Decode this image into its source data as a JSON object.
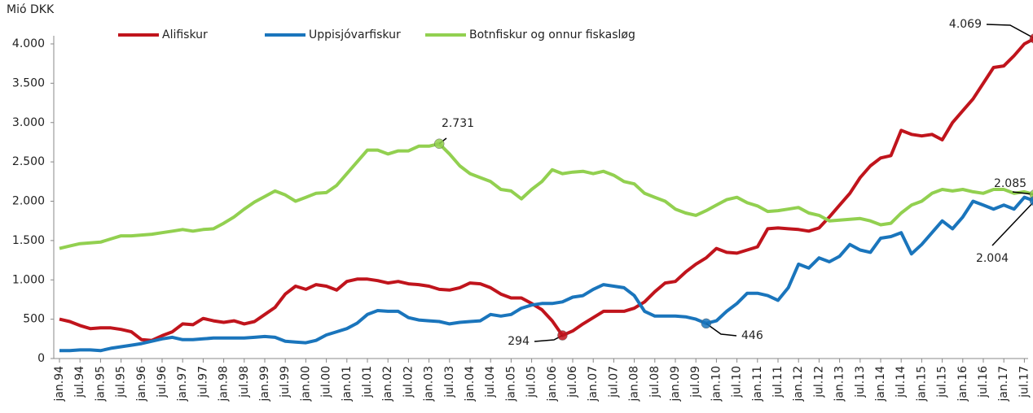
{
  "chart_data": {
    "type": "line",
    "y_label": "Mió DKK",
    "categories": [
      "jan.94",
      null,
      "jul.94",
      null,
      "jan.95",
      null,
      "jul.95",
      null,
      "jan.96",
      null,
      "jul.96",
      null,
      "jan.97",
      null,
      "jul.97",
      null,
      "jan.98",
      null,
      "jul.98",
      null,
      "jan.99",
      null,
      "jul.99",
      null,
      "jan.00",
      null,
      "jul.00",
      null,
      "jan.01",
      null,
      "jul.01",
      null,
      "jan.02",
      null,
      "jul.02",
      null,
      "jan.03",
      null,
      "jul.03",
      null,
      "jan.04",
      null,
      "jul.04",
      null,
      "jan.05",
      null,
      "jul.05",
      null,
      "jan.06",
      null,
      "jul.06",
      null,
      "jan.07",
      null,
      "jul.07",
      null,
      "jan.08",
      null,
      "jul.08",
      null,
      "jan.09",
      null,
      "jul.09",
      null,
      "jan.10",
      null,
      "jul.10",
      null,
      "jan.11",
      null,
      "jul.11",
      null,
      "jan.12",
      null,
      "jul.12",
      null,
      "jan.13",
      null,
      "jul.13",
      null,
      "jan.14",
      null,
      "jul.14",
      null,
      "jan.15",
      null,
      "jul.15",
      null,
      "jan.16",
      null,
      "jul.16",
      null,
      "jan.17",
      null,
      "jul.17",
      null
    ],
    "series": [
      {
        "name": "Alifiskur",
        "color": "#c0141c",
        "values": [
          500,
          470,
          420,
          380,
          390,
          390,
          370,
          340,
          240,
          230,
          290,
          340,
          440,
          430,
          510,
          480,
          460,
          480,
          440,
          470,
          560,
          650,
          820,
          920,
          880,
          940,
          920,
          870,
          980,
          1010,
          1010,
          990,
          960,
          980,
          950,
          940,
          920,
          880,
          870,
          900,
          960,
          950,
          900,
          820,
          770,
          770,
          700,
          620,
          480,
          294,
          350,
          440,
          520,
          600,
          600,
          600,
          640,
          720,
          850,
          960,
          980,
          1100,
          1200,
          1280,
          1400,
          1350,
          1340,
          1380,
          1420,
          1650,
          1660,
          1650,
          1640,
          1620,
          1660,
          1800,
          1950,
          2100,
          2300,
          2450,
          2550,
          2580,
          2900,
          2850,
          2830,
          2850,
          2780,
          3000,
          3150,
          3300,
          3500,
          3700,
          3720,
          3850,
          4000,
          4069
        ]
      },
      {
        "name": "Uppisjóvarfiskur",
        "color": "#1a75bc",
        "values": [
          100,
          100,
          110,
          110,
          100,
          130,
          150,
          170,
          190,
          220,
          250,
          270,
          240,
          240,
          250,
          260,
          260,
          260,
          260,
          270,
          280,
          270,
          220,
          210,
          200,
          230,
          300,
          340,
          380,
          450,
          560,
          610,
          600,
          600,
          520,
          490,
          480,
          470,
          440,
          460,
          470,
          480,
          560,
          540,
          560,
          640,
          680,
          700,
          700,
          720,
          780,
          800,
          880,
          940,
          920,
          900,
          800,
          600,
          540,
          540,
          540,
          530,
          500,
          446,
          480,
          600,
          700,
          830,
          830,
          800,
          740,
          900,
          1200,
          1150,
          1280,
          1230,
          1300,
          1450,
          1380,
          1350,
          1530,
          1550,
          1600,
          1330,
          1450,
          1600,
          1750,
          1650,
          1800,
          2000,
          1950,
          1900,
          1950,
          1900,
          2050,
          2004
        ]
      },
      {
        "name": "Botnfiskur og onnur fiskasløg",
        "color": "#92d050",
        "values": [
          1400,
          1430,
          1460,
          1470,
          1480,
          1520,
          1560,
          1560,
          1570,
          1580,
          1600,
          1620,
          1640,
          1620,
          1640,
          1650,
          1720,
          1800,
          1900,
          1990,
          2060,
          2130,
          2080,
          2000,
          2050,
          2100,
          2110,
          2200,
          2350,
          2500,
          2650,
          2650,
          2600,
          2640,
          2640,
          2700,
          2700,
          2731,
          2600,
          2450,
          2350,
          2300,
          2250,
          2150,
          2130,
          2030,
          2150,
          2250,
          2400,
          2350,
          2370,
          2380,
          2350,
          2380,
          2330,
          2250,
          2220,
          2100,
          2050,
          2000,
          1900,
          1850,
          1820,
          1880,
          1950,
          2020,
          2050,
          1980,
          1940,
          1870,
          1880,
          1900,
          1920,
          1850,
          1820,
          1750,
          1760,
          1770,
          1780,
          1750,
          1700,
          1720,
          1850,
          1950,
          2000,
          2100,
          2150,
          2130,
          2150,
          2120,
          2100,
          2150,
          2150,
          2100,
          2120,
          2085
        ]
      }
    ],
    "annotations": [
      {
        "series": "Alifiskur",
        "value": 4069,
        "label": "4.069"
      },
      {
        "series": "Botnfiskur og onnur fiskasløg",
        "value": 2731,
        "label": "2.731"
      },
      {
        "series": "Botnfiskur og onnur fiskasløg",
        "value": 2085,
        "label": "2.085"
      },
      {
        "series": "Uppisjóvarfiskur",
        "value": 2004,
        "label": "2.004"
      },
      {
        "series": "Alifiskur",
        "value": 294,
        "label": "294"
      },
      {
        "series": "Uppisjóvarfiskur",
        "value": 446,
        "label": "446"
      }
    ],
    "ylim": [
      0,
      4000
    ],
    "yticks": [
      0,
      500,
      {
        "value": 1000,
        "label": "1.000"
      },
      {
        "value": 1500,
        "label": "1.500"
      },
      {
        "value": 2000,
        "label": "2.000"
      },
      {
        "value": 2500,
        "label": "2.500"
      },
      {
        "value": 3000,
        "label": "3.000"
      },
      {
        "value": 3500,
        "label": "3.500"
      },
      {
        "value": 4000,
        "label": "4.000"
      }
    ],
    "legend": "top"
  }
}
